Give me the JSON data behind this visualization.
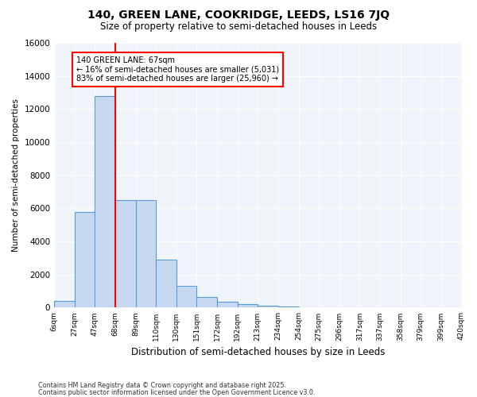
{
  "title": "140, GREEN LANE, COOKRIDGE, LEEDS, LS16 7JQ",
  "subtitle": "Size of property relative to semi-detached houses in Leeds",
  "xlabel": "Distribution of semi-detached houses by size in Leeds",
  "ylabel": "Number of semi-detached properties",
  "footnote1": "Contains HM Land Registry data © Crown copyright and database right 2025.",
  "footnote2": "Contains public sector information licensed under the Open Government Licence v3.0.",
  "property_label": "140 GREEN LANE: 67sqm",
  "smaller_pct": "16% of semi-detached houses are smaller (5,031)",
  "larger_pct": "83% of semi-detached houses are larger (25,960)",
  "bin_labels": [
    "6sqm",
    "27sqm",
    "47sqm",
    "68sqm",
    "89sqm",
    "110sqm",
    "130sqm",
    "151sqm",
    "172sqm",
    "192sqm",
    "213sqm",
    "234sqm",
    "254sqm",
    "275sqm",
    "296sqm",
    "317sqm",
    "337sqm",
    "358sqm",
    "379sqm",
    "399sqm",
    "420sqm"
  ],
  "bar_values": [
    400,
    5800,
    12800,
    6500,
    6500,
    2900,
    1300,
    650,
    350,
    200,
    130,
    50,
    30,
    10,
    5,
    2,
    1,
    0,
    0,
    0
  ],
  "bar_color": "#c5d8f0",
  "bar_edge_color": "#5b9bd5",
  "vline_color": "red",
  "background_color": "#f0f4fb",
  "ylim": [
    0,
    16000
  ],
  "yticks": [
    0,
    2000,
    4000,
    6000,
    8000,
    10000,
    12000,
    14000,
    16000
  ]
}
